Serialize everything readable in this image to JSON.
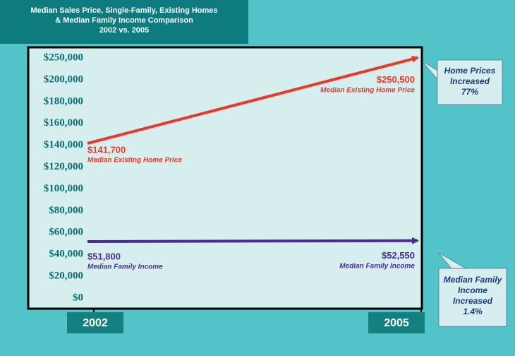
{
  "chart_data": {
    "type": "line",
    "title_lines": [
      "Median Sales Price, Single-Family, Existing Homes",
      "& Median Family Income Comparison",
      "2002 vs. 2005"
    ],
    "categories": [
      "2002",
      "2005"
    ],
    "series": [
      {
        "name": "Median Existing Home Price",
        "color": "#e8392a",
        "values": [
          141700,
          250500
        ],
        "value_labels": [
          "$141,700",
          "$250,500"
        ]
      },
      {
        "name": "Median Family Income",
        "color": "#4b2d90",
        "values": [
          51800,
          52550
        ],
        "value_labels": [
          "$51,800",
          "$52,550"
        ]
      }
    ],
    "ylim": [
      0,
      250000
    ],
    "yticks": [
      {
        "value": 0,
        "label": "$0"
      },
      {
        "value": 20000,
        "label": "$20,000"
      },
      {
        "value": 40000,
        "label": "$40,000"
      },
      {
        "value": 60000,
        "label": "$60,000"
      },
      {
        "value": 80000,
        "label": "$80,000"
      },
      {
        "value": 100000,
        "label": "$100,000"
      },
      {
        "value": 120000,
        "label": "$120,000"
      },
      {
        "value": 140000,
        "label": "$140,000"
      },
      {
        "value": 160000,
        "label": "$160,000"
      },
      {
        "value": 180000,
        "label": "$180,000"
      },
      {
        "value": 200000,
        "label": "$200,000"
      },
      {
        "value": 250000,
        "label": "$250,000"
      }
    ],
    "annotations": [
      {
        "lines": [
          "Home Prices",
          "Increased",
          "77%"
        ]
      },
      {
        "lines": [
          "Median Family",
          "Income",
          "Increased",
          "1.4%"
        ]
      }
    ]
  }
}
